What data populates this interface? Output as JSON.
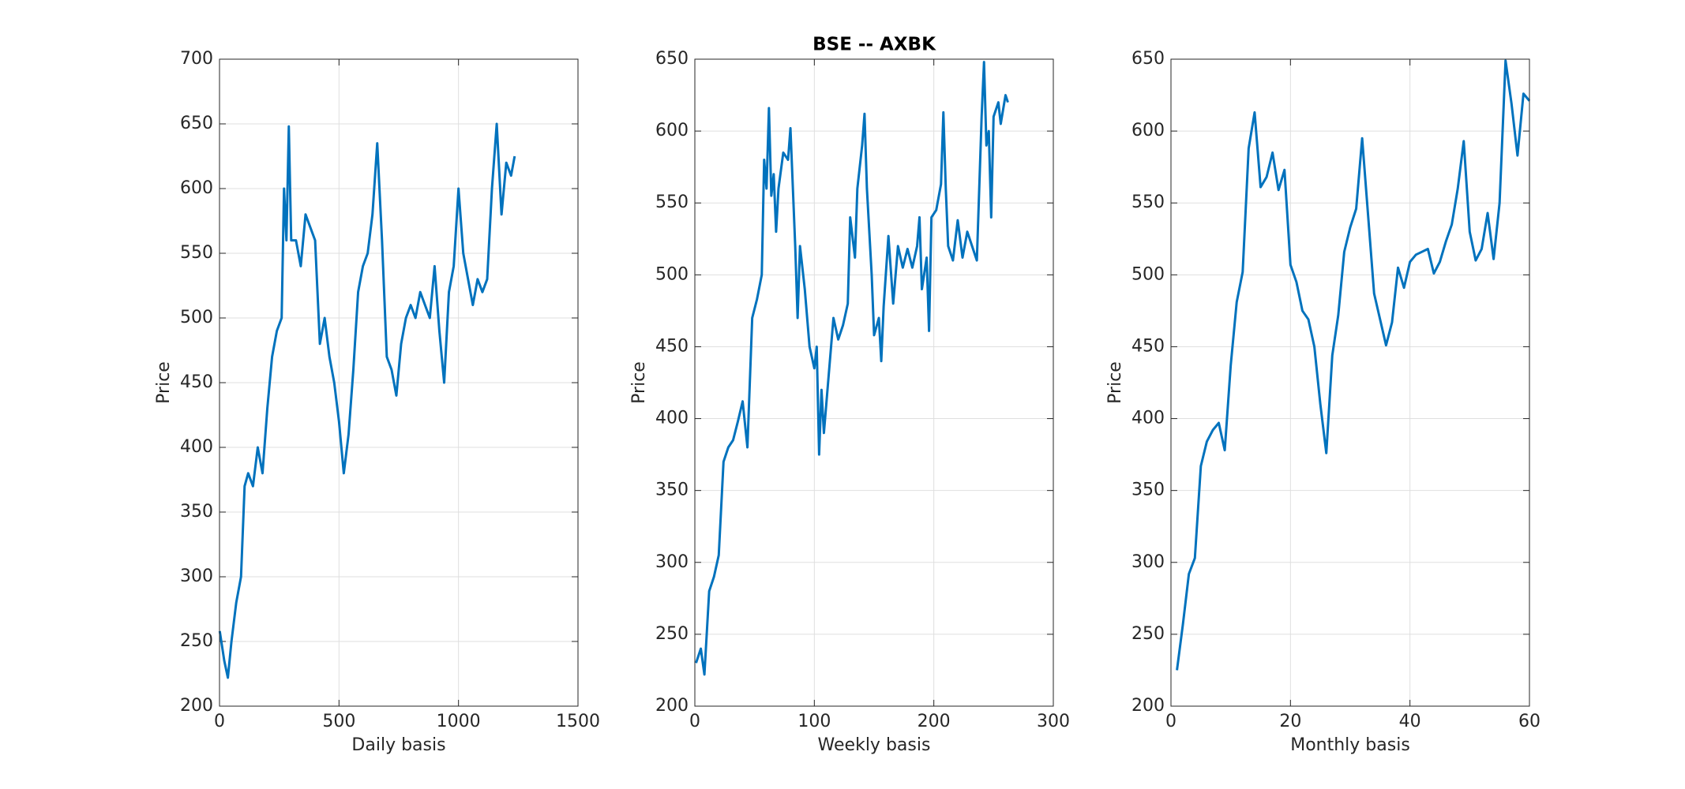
{
  "chart_data": [
    {
      "type": "line",
      "title": "",
      "xlabel": "Daily basis",
      "ylabel": "Price",
      "grid": true,
      "xlim": [
        0,
        1500
      ],
      "xticks": [
        0,
        500,
        1000,
        1500
      ],
      "ylim": [
        200,
        700
      ],
      "yticks": [
        200,
        250,
        300,
        350,
        400,
        450,
        500,
        550,
        600,
        650,
        700
      ],
      "series": [
        {
          "color": "#0072bd",
          "x": [
            1,
            20,
            35,
            50,
            70,
            90,
            105,
            120,
            140,
            160,
            180,
            200,
            220,
            240,
            260,
            270,
            280,
            290,
            300,
            320,
            340,
            360,
            380,
            400,
            420,
            440,
            460,
            480,
            500,
            520,
            540,
            560,
            580,
            600,
            620,
            640,
            660,
            680,
            700,
            720,
            740,
            760,
            780,
            800,
            820,
            840,
            860,
            880,
            900,
            920,
            940,
            960,
            980,
            1000,
            1020,
            1040,
            1060,
            1080,
            1100,
            1120,
            1140,
            1160,
            1180,
            1200,
            1220,
            1235
          ],
          "values": [
            258,
            235,
            222,
            250,
            280,
            300,
            370,
            380,
            370,
            400,
            380,
            430,
            470,
            490,
            500,
            600,
            560,
            648,
            560,
            560,
            540,
            580,
            570,
            560,
            480,
            500,
            470,
            450,
            420,
            380,
            410,
            460,
            520,
            540,
            550,
            580,
            635,
            560,
            470,
            460,
            440,
            480,
            500,
            510,
            500,
            520,
            510,
            500,
            540,
            490,
            450,
            520,
            540,
            600,
            550,
            530,
            510,
            530,
            520,
            530,
            600,
            650,
            580,
            620,
            610,
            625
          ]
        }
      ]
    },
    {
      "type": "line",
      "title": "BSE -- AXBK",
      "xlabel": "Weekly basis",
      "ylabel": "Price",
      "grid": true,
      "xlim": [
        0,
        300
      ],
      "xticks": [
        0,
        100,
        200,
        300
      ],
      "ylim": [
        200,
        650
      ],
      "yticks": [
        200,
        250,
        300,
        350,
        400,
        450,
        500,
        550,
        600,
        650
      ],
      "series": [
        {
          "color": "#0072bd",
          "x": [
            1,
            5,
            8,
            12,
            16,
            20,
            24,
            28,
            32,
            36,
            40,
            44,
            48,
            52,
            56,
            58,
            60,
            62,
            64,
            66,
            68,
            70,
            74,
            78,
            80,
            84,
            86,
            88,
            92,
            96,
            100,
            102,
            104,
            106,
            108,
            112,
            116,
            120,
            124,
            128,
            130,
            134,
            136,
            140,
            142,
            144,
            148,
            150,
            154,
            156,
            158,
            162,
            166,
            170,
            174,
            178,
            182,
            186,
            188,
            190,
            194,
            196,
            198,
            202,
            206,
            208,
            210,
            212,
            216,
            220,
            224,
            228,
            232,
            236,
            240,
            242,
            244,
            246,
            248,
            250,
            254,
            256,
            260,
            262
          ],
          "values": [
            230,
            240,
            222,
            280,
            290,
            305,
            370,
            380,
            385,
            398,
            412,
            380,
            470,
            483,
            500,
            580,
            560,
            616,
            555,
            570,
            530,
            560,
            585,
            580,
            602,
            520,
            470,
            520,
            490,
            450,
            435,
            450,
            375,
            420,
            390,
            430,
            470,
            455,
            465,
            480,
            540,
            512,
            560,
            590,
            612,
            560,
            500,
            458,
            470,
            440,
            478,
            527,
            480,
            520,
            505,
            518,
            505,
            520,
            540,
            490,
            512,
            461,
            540,
            545,
            563,
            613,
            560,
            520,
            510,
            538,
            512,
            530,
            520,
            510,
            610,
            648,
            590,
            600,
            540,
            610,
            620,
            605,
            625,
            620
          ]
        }
      ]
    },
    {
      "type": "line",
      "title": "",
      "xlabel": "Monthly basis",
      "ylabel": "Price",
      "grid": true,
      "xlim": [
        0,
        60
      ],
      "xticks": [
        0,
        20,
        40,
        60
      ],
      "ylim": [
        200,
        650
      ],
      "yticks": [
        200,
        250,
        300,
        350,
        400,
        450,
        500,
        550,
        600,
        650
      ],
      "series": [
        {
          "color": "#0072bd",
          "x": [
            1,
            2,
            3,
            4,
            5,
            6,
            7,
            8,
            9,
            10,
            11,
            12,
            13,
            14,
            15,
            16,
            17,
            18,
            19,
            20,
            21,
            22,
            23,
            24,
            25,
            26,
            27,
            28,
            29,
            30,
            31,
            32,
            33,
            34,
            35,
            36,
            37,
            38,
            39,
            40,
            41,
            42,
            43,
            44,
            45,
            46,
            47,
            48,
            49,
            50,
            51,
            52,
            53,
            54,
            55,
            56,
            57,
            58,
            59,
            60
          ],
          "values": [
            225,
            257,
            292,
            303,
            367,
            384,
            392,
            397,
            378,
            437,
            481,
            502,
            588,
            613,
            561,
            568,
            585,
            559,
            573,
            507,
            495,
            475,
            469,
            450,
            410,
            376,
            444,
            472,
            516,
            533,
            546,
            595,
            541,
            487,
            469,
            451,
            467,
            505,
            491,
            509,
            514,
            516,
            518,
            501,
            509,
            523,
            535,
            560,
            593,
            530,
            510,
            518,
            543,
            511,
            550,
            649,
            619,
            583,
            626,
            621
          ]
        }
      ]
    }
  ]
}
